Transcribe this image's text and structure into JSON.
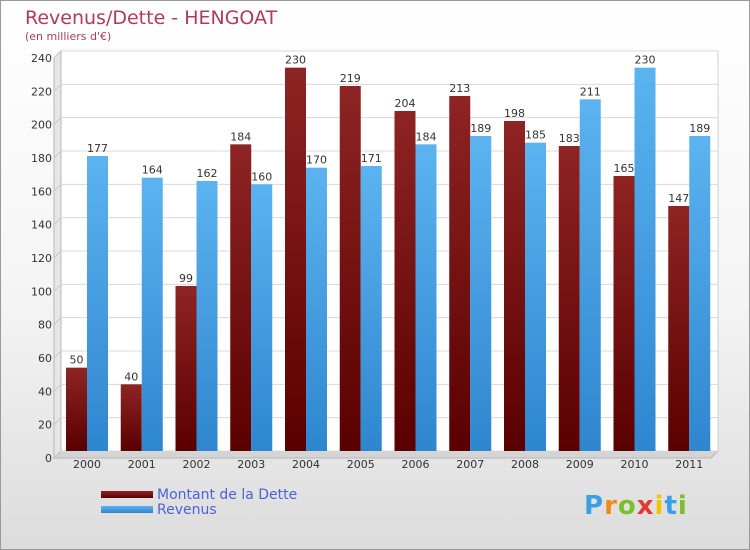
{
  "chart_data": {
    "type": "bar",
    "title": "Revenus/Dette - HENGOAT",
    "subtitle": "(en milliers d'€)",
    "categories": [
      "2000",
      "2001",
      "2002",
      "2003",
      "2004",
      "2005",
      "2006",
      "2007",
      "2008",
      "2009",
      "2010",
      "2011"
    ],
    "series": [
      {
        "name": "Montant de la Dette",
        "color": "#7a1616",
        "values": [
          50,
          40,
          99,
          184,
          230,
          219,
          204,
          213,
          198,
          183,
          165,
          147
        ]
      },
      {
        "name": "Revenus",
        "color": "#3f9fe3",
        "values": [
          177,
          164,
          162,
          160,
          170,
          171,
          184,
          189,
          185,
          211,
          230,
          189
        ]
      }
    ],
    "ylim": [
      0,
      240
    ],
    "yticks": [
      0,
      20,
      40,
      60,
      80,
      100,
      120,
      140,
      160,
      180,
      200,
      220,
      240
    ],
    "grid": true,
    "legend": "bottom-left",
    "xlabel": "",
    "ylabel": ""
  },
  "logo": {
    "letters": [
      "P",
      "r",
      "o",
      "x",
      "i",
      "t",
      "i"
    ],
    "colors": [
      "#3aa0e6",
      "#f08a1c",
      "#7bbf2a",
      "#e03c31",
      "#f2c300",
      "#3aa0e6",
      "#7bbf2a"
    ]
  }
}
